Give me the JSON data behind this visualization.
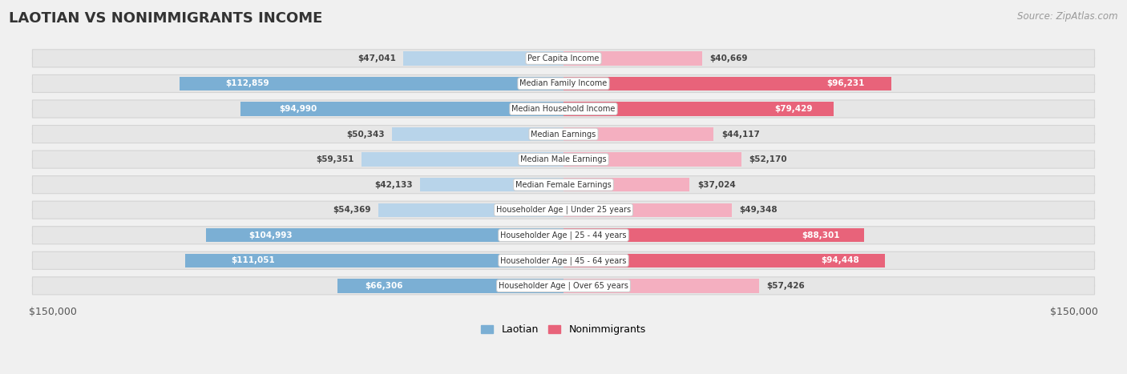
{
  "title": "LAOTIAN VS NONIMMIGRANTS INCOME",
  "source": "Source: ZipAtlas.com",
  "max_value": 150000,
  "categories": [
    "Per Capita Income",
    "Median Family Income",
    "Median Household Income",
    "Median Earnings",
    "Median Male Earnings",
    "Median Female Earnings",
    "Householder Age | Under 25 years",
    "Householder Age | 25 - 44 years",
    "Householder Age | 45 - 64 years",
    "Householder Age | Over 65 years"
  ],
  "laotian_values": [
    47041,
    112859,
    94990,
    50343,
    59351,
    42133,
    54369,
    104993,
    111051,
    66306
  ],
  "nonimmigrant_values": [
    40669,
    96231,
    79429,
    44117,
    52170,
    37024,
    49348,
    88301,
    94448,
    57426
  ],
  "laotian_labels": [
    "$47,041",
    "$112,859",
    "$94,990",
    "$50,343",
    "$59,351",
    "$42,133",
    "$54,369",
    "$104,993",
    "$111,051",
    "$66,306"
  ],
  "nonimmigrant_labels": [
    "$40,669",
    "$96,231",
    "$79,429",
    "$44,117",
    "$52,170",
    "$37,024",
    "$49,348",
    "$88,301",
    "$94,448",
    "$57,426"
  ],
  "laotian_color_dark": "#7bafd4",
  "laotian_color_light": "#b8d4ea",
  "nonimmigrant_color_dark": "#e8637a",
  "nonimmigrant_color_light": "#f4afc0",
  "background_color": "#f0f0f0",
  "row_bg_color": "#e4e4e4",
  "label_box_color": "#ffffff",
  "title_fontsize": 13,
  "source_fontsize": 8.5,
  "bar_height": 0.55,
  "lao_threshold": 65000,
  "non_threshold": 65000,
  "legend_laotian": "Laotian",
  "legend_nonimmigrants": "Nonimmigrants"
}
